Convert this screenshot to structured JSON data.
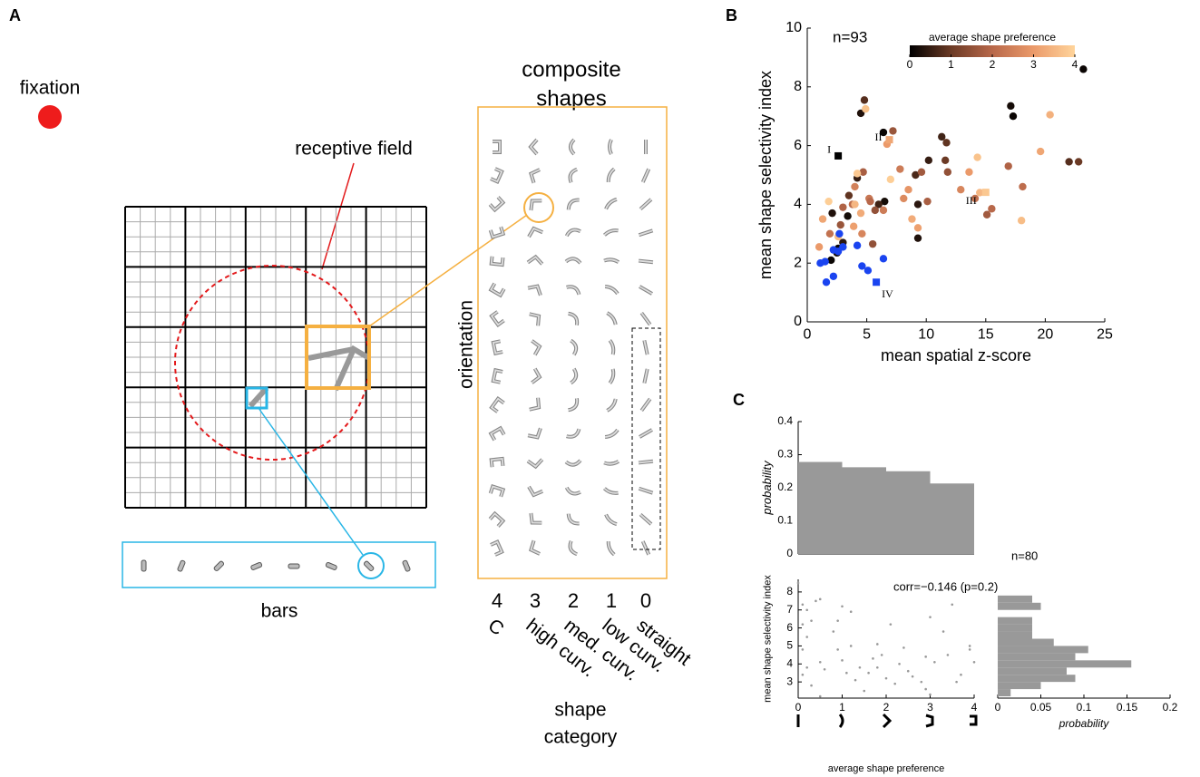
{
  "panel_a": {
    "label": "A",
    "fixation": "fixation",
    "receptive_field": "receptive field",
    "composite_title": [
      "composite",
      "shapes"
    ],
    "orientation": "orientation",
    "bars": "bars",
    "categories": [
      {
        "number": "4",
        "name": "C"
      },
      {
        "number": "3",
        "name": "high curv."
      },
      {
        "number": "2",
        "name": "med. curv."
      },
      {
        "number": "1",
        "name": "low curv."
      },
      {
        "number": "0",
        "name": "straight"
      }
    ],
    "shape_category": [
      "shape",
      "category"
    ]
  },
  "chart_data": [
    {
      "type": "scatter",
      "panel": "B",
      "annotation": "n=93",
      "xlabel": "mean spatial z-score",
      "ylabel": "mean shape selectivity index",
      "xlim": [
        0,
        25
      ],
      "ylim": [
        0,
        10
      ],
      "xticks": [
        0,
        5,
        10,
        15,
        20,
        25
      ],
      "yticks": [
        0,
        2,
        4,
        6,
        8,
        10
      ],
      "colorbar": {
        "title": "average shape preference",
        "colors": [
          "#000000",
          "#6b3a25",
          "#b8684a",
          "#eb9a6a",
          "#ffd49b"
        ],
        "lim": [
          0,
          4
        ],
        "ticks": [
          0,
          1,
          2,
          3,
          4
        ]
      },
      "series": [
        {
          "points": [
            [
              23.2,
              8.6,
              0.1
            ],
            [
              17.1,
              7.35,
              0.2
            ],
            [
              17.3,
              7.0,
              0.1
            ],
            [
              11.3,
              6.3,
              0.6
            ],
            [
              11.7,
              6.1,
              0.9
            ],
            [
              11.6,
              5.5,
              1.0
            ],
            [
              10.2,
              5.5,
              0.5
            ],
            [
              9.1,
              5.0,
              0.7
            ],
            [
              9.3,
              4.0,
              0.4
            ],
            [
              9.3,
              2.85,
              0.3
            ],
            [
              22.0,
              5.45,
              0.8
            ],
            [
              22.8,
              5.45,
              1.0
            ],
            [
              6.4,
              6.45,
              0.1
            ],
            [
              6.5,
              4.1,
              0.2
            ],
            [
              4.5,
              7.1,
              0.3
            ],
            [
              4.8,
              7.55,
              0.8
            ],
            [
              4.2,
              4.9,
              0.5
            ],
            [
              3.4,
              3.6,
              0.2
            ],
            [
              2.1,
              3.7,
              0.3
            ],
            [
              2.6,
              2.5,
              0.1
            ],
            [
              2.0,
              2.1,
              0.1
            ],
            [
              3.5,
              4.3,
              0.9
            ],
            [
              6.0,
              4.0,
              0.6
            ],
            [
              2.5,
              2.35,
              0.2
            ],
            [
              3.0,
              2.7,
              0.4
            ],
            [
              7.2,
              6.5,
              1.6
            ],
            [
              10.1,
              4.1,
              1.8
            ],
            [
              11.8,
              5.1,
              1.5
            ],
            [
              12.9,
              4.5,
              2.6
            ],
            [
              14.1,
              4.2,
              2.2
            ],
            [
              15.1,
              3.65,
              1.7
            ],
            [
              15.5,
              3.85,
              2.0
            ],
            [
              16.9,
              5.3,
              1.9
            ],
            [
              18.1,
              4.6,
              2.1
            ],
            [
              5.2,
              4.2,
              2.3
            ],
            [
              5.3,
              4.1,
              2.0
            ],
            [
              5.7,
              3.8,
              1.5
            ],
            [
              4.7,
              5.1,
              1.8
            ],
            [
              7.8,
              5.2,
              2.4
            ],
            [
              8.1,
              4.2,
              2.7
            ],
            [
              4.0,
              4.6,
              2.5
            ],
            [
              3.8,
              4.0,
              2.1
            ],
            [
              2.8,
              3.3,
              1.6
            ],
            [
              1.9,
              3.0,
              2.2
            ],
            [
              3.0,
              3.9,
              1.9
            ],
            [
              5.5,
              2.65,
              1.5
            ],
            [
              4.6,
              3.0,
              2.6
            ],
            [
              6.4,
              3.8,
              2.4
            ],
            [
              9.6,
              5.1,
              1.7
            ],
            [
              20.4,
              7.05,
              3.4
            ],
            [
              19.6,
              5.8,
              3.2
            ],
            [
              18.0,
              3.45,
              3.6
            ],
            [
              14.3,
              5.6,
              3.7
            ],
            [
              14.5,
              4.4,
              3.5
            ],
            [
              13.6,
              5.1,
              3.0
            ],
            [
              9.3,
              3.2,
              3.1
            ],
            [
              8.8,
              3.5,
              3.3
            ],
            [
              7.0,
              4.85,
              3.9
            ],
            [
              6.7,
              6.05,
              3.0
            ],
            [
              4.2,
              5.05,
              3.8
            ],
            [
              4.0,
              4.0,
              3.5
            ],
            [
              3.9,
              3.25,
              3.1
            ],
            [
              1.8,
              4.1,
              3.9
            ],
            [
              1.3,
              3.5,
              3.2
            ],
            [
              1.0,
              2.55,
              3.0
            ],
            [
              2.6,
              2.9,
              3.6
            ],
            [
              4.9,
              7.25,
              3.7
            ],
            [
              4.5,
              3.7,
              3.3
            ],
            [
              8.5,
              4.5,
              2.9
            ]
          ]
        },
        {
          "color": "#1a44f0",
          "points": [
            [
              1.1,
              2.0
            ],
            [
              1.5,
              2.05
            ],
            [
              1.6,
              1.35
            ],
            [
              2.2,
              1.55
            ],
            [
              2.2,
              2.45
            ],
            [
              2.7,
              3.0
            ],
            [
              2.6,
              2.4
            ],
            [
              3.0,
              2.55
            ],
            [
              4.6,
              1.9
            ],
            [
              5.1,
              1.75
            ],
            [
              6.4,
              2.15
            ],
            [
              4.2,
              2.6
            ]
          ]
        }
      ],
      "markers": [
        {
          "label": "I",
          "x": 2.6,
          "y": 5.65,
          "pref": 0
        },
        {
          "label": "II",
          "x": 6.9,
          "y": 6.2,
          "pref": 3.2
        },
        {
          "label": "III",
          "x": 15.0,
          "y": 4.41,
          "pref": 3.8
        },
        {
          "label": "IV",
          "x": 5.8,
          "y": 1.35,
          "color": "#1a44f0"
        }
      ]
    },
    {
      "type": "histogram",
      "panel": "C",
      "ylabel": "probability",
      "orientation": "vertical",
      "color": "#999999",
      "bins": [
        0,
        1,
        2,
        3,
        4
      ],
      "values": [
        0.278,
        0.262,
        0.25,
        0.213
      ],
      "xlim": [
        0,
        4
      ],
      "ylim": [
        0,
        0.4
      ],
      "yticks": [
        0,
        0.1,
        0.2,
        0.3,
        0.4
      ]
    },
    {
      "type": "scatter",
      "annotation": "corr=−0.146 (p=0.2)",
      "xlabel": "average shape preference",
      "ylabel": "mean shape selectivity index",
      "color": "#999999",
      "xlim": [
        0,
        4
      ],
      "ylim": [
        2.1,
        8.7
      ],
      "xticks": [
        0,
        1,
        2,
        3,
        4
      ],
      "yticks": [
        3,
        4,
        5,
        6,
        7,
        8
      ],
      "series": [
        {
          "color": "#999999",
          "points": [
            [
              0,
              8.5
            ],
            [
              0.1,
              7.3
            ],
            [
              0.3,
              6.4
            ],
            [
              0.2,
              7.0
            ],
            [
              0.5,
              7.6
            ],
            [
              0.4,
              7.5
            ],
            [
              0.1,
              6.2
            ],
            [
              0.2,
              5.5
            ],
            [
              0.1,
              4.8
            ],
            [
              0.2,
              3.8
            ],
            [
              0.1,
              3.4
            ],
            [
              0.3,
              2.8
            ],
            [
              0.5,
              4.1
            ],
            [
              0.6,
              3.7
            ],
            [
              0.5,
              2.2
            ],
            [
              0.8,
              5.8
            ],
            [
              0.9,
              6.4
            ],
            [
              1.0,
              7.2
            ],
            [
              0.9,
              4.8
            ],
            [
              1.0,
              4.2
            ],
            [
              1.2,
              5.0
            ],
            [
              1.1,
              3.5
            ],
            [
              1.3,
              3.1
            ],
            [
              1.6,
              3.5
            ],
            [
              1.5,
              2.5
            ],
            [
              1.7,
              4.3
            ],
            [
              1.8,
              5.1
            ],
            [
              1.8,
              3.8
            ],
            [
              1.9,
              4.5
            ],
            [
              2.0,
              3.2
            ],
            [
              2.1,
              6.2
            ],
            [
              2.2,
              2.9
            ],
            [
              2.3,
              4.0
            ],
            [
              2.5,
              3.6
            ],
            [
              2.4,
              4.9
            ],
            [
              2.8,
              3.0
            ],
            [
              2.9,
              4.4
            ],
            [
              3.0,
              6.6
            ],
            [
              3.1,
              4.1
            ],
            [
              2.9,
              2.6
            ],
            [
              3.0,
              2.3
            ],
            [
              3.3,
              5.8
            ],
            [
              3.4,
              4.5
            ],
            [
              3.5,
              7.3
            ],
            [
              3.7,
              3.4
            ],
            [
              3.9,
              5.0
            ],
            [
              4.0,
              4.1
            ],
            [
              3.9,
              4.8
            ],
            [
              1.4,
              3.8
            ],
            [
              2.6,
              3.3
            ],
            [
              1.2,
              6.9
            ],
            [
              3.6,
              3.0
            ]
          ]
        }
      ]
    },
    {
      "type": "histogram",
      "orientation": "horizontal",
      "annotation": "n=80",
      "xlabel": "probability",
      "color": "#999999",
      "bins": [
        2.2,
        2.6,
        3.0,
        3.4,
        3.8,
        4.2,
        4.6,
        5.0,
        5.4,
        5.8,
        6.2,
        6.6,
        7.0,
        7.4,
        7.8
      ],
      "values": [
        0.015,
        0.05,
        0.09,
        0.08,
        0.155,
        0.09,
        0.105,
        0.065,
        0.04,
        0.04,
        0.04,
        0,
        0.05,
        0.04
      ],
      "xlim": [
        0,
        0.2
      ],
      "xticks": [
        0,
        0.05,
        0.1,
        0.15,
        0.2
      ],
      "ylim": [
        2.1,
        8.7
      ]
    }
  ]
}
